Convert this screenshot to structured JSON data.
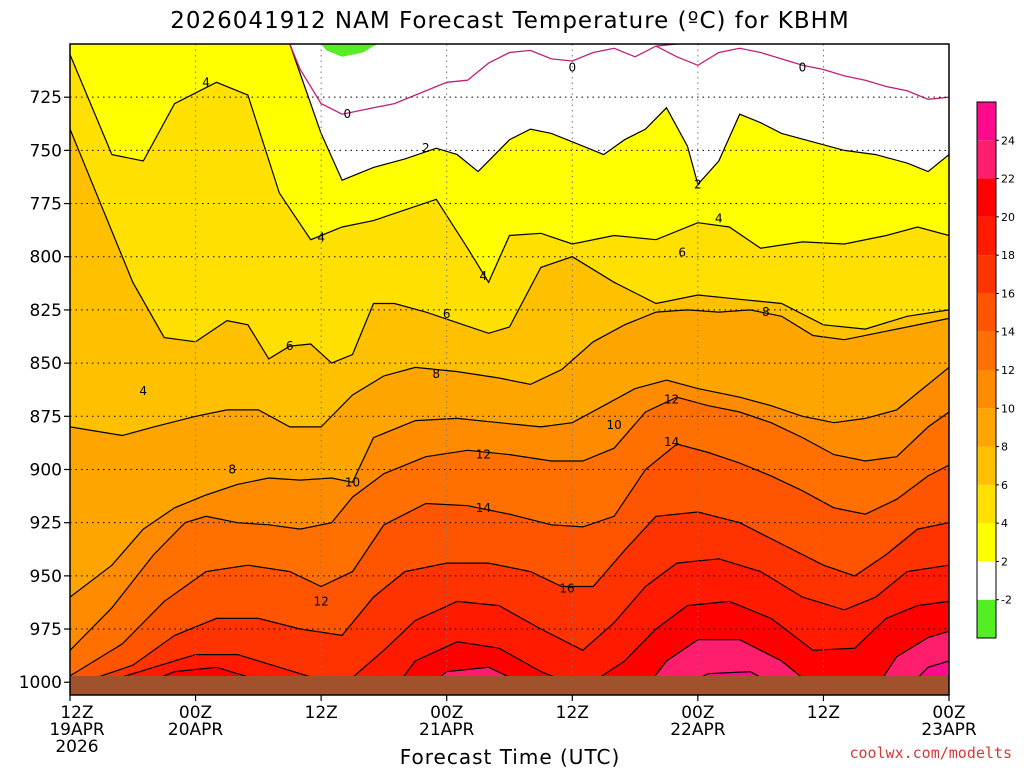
{
  "chart_data": {
    "type": "heatmap",
    "title": "2026041912 NAM Forecast Temperature (ºC) for KBHM",
    "xlabel": "Forecast Time (UTC)",
    "ylabel": "",
    "x_ticks": [
      {
        "hour": 0,
        "line1": "12Z",
        "line2": "19APR",
        "line3": "2026"
      },
      {
        "hour": 12,
        "line1": "00Z",
        "line2": "20APR",
        "line3": ""
      },
      {
        "hour": 24,
        "line1": "12Z",
        "line2": "",
        "line3": ""
      },
      {
        "hour": 36,
        "line1": "00Z",
        "line2": "21APR",
        "line3": ""
      },
      {
        "hour": 48,
        "line1": "12Z",
        "line2": "",
        "line3": ""
      },
      {
        "hour": 60,
        "line1": "00Z",
        "line2": "22APR",
        "line3": ""
      },
      {
        "hour": 72,
        "line1": "12Z",
        "line2": "",
        "line3": ""
      },
      {
        "hour": 84,
        "line1": "00Z",
        "line2": "23APR",
        "line3": ""
      }
    ],
    "y_axis": {
      "label": "",
      "ticks": [
        725,
        750,
        775,
        800,
        825,
        850,
        875,
        900,
        925,
        950,
        975,
        1000
      ],
      "range": [
        700,
        1006
      ]
    },
    "x_range_hours": [
      0,
      84
    ],
    "colorbar": {
      "levels": [
        -2,
        2,
        4,
        6,
        8,
        10,
        12,
        14,
        16,
        18,
        20,
        22,
        24
      ],
      "colors": [
        "#55ee22",
        "#ffffff",
        "#ffff00",
        "#ffe000",
        "#ffc000",
        "#ffa500",
        "#ff8c00",
        "#ff7000",
        "#ff5500",
        "#ff3300",
        "#ff1a00",
        "#ff0000",
        "#ff1e6e",
        "#ff0a8c"
      ]
    },
    "contour_labels": [
      {
        "text": "4",
        "hour": 13.0,
        "p": 718
      },
      {
        "text": "0",
        "hour": 26.5,
        "p": 733
      },
      {
        "text": "0",
        "hour": 48.0,
        "p": 711
      },
      {
        "text": "0",
        "hour": 70.0,
        "p": 711
      },
      {
        "text": "2",
        "hour": 34.0,
        "p": 749
      },
      {
        "text": "2",
        "hour": 60.0,
        "p": 766
      },
      {
        "text": "4",
        "hour": 24.0,
        "p": 791
      },
      {
        "text": "4",
        "hour": 39.5,
        "p": 809
      },
      {
        "text": "4",
        "hour": 62.0,
        "p": 782
      },
      {
        "text": "4",
        "hour": 7.0,
        "p": 863
      },
      {
        "text": "6",
        "hour": 21.0,
        "p": 842
      },
      {
        "text": "6",
        "hour": 36.0,
        "p": 827
      },
      {
        "text": "6",
        "hour": 58.5,
        "p": 798
      },
      {
        "text": "8",
        "hour": 15.5,
        "p": 900
      },
      {
        "text": "8",
        "hour": 35.0,
        "p": 855
      },
      {
        "text": "8",
        "hour": 66.5,
        "p": 826
      },
      {
        "text": "10",
        "hour": 27.0,
        "p": 906
      },
      {
        "text": "10",
        "hour": 52.0,
        "p": 879
      },
      {
        "text": "12",
        "hour": 24.0,
        "p": 962
      },
      {
        "text": "12",
        "hour": 39.5,
        "p": 893
      },
      {
        "text": "12",
        "hour": 57.5,
        "p": 867
      },
      {
        "text": "14",
        "hour": 39.5,
        "p": 918
      },
      {
        "text": "14",
        "hour": 57.5,
        "p": 887
      },
      {
        "text": "16",
        "hour": 47.5,
        "p": 956
      }
    ],
    "field_description_omitted": false,
    "grid": true
  },
  "credit": "coolwx.com/modelts"
}
